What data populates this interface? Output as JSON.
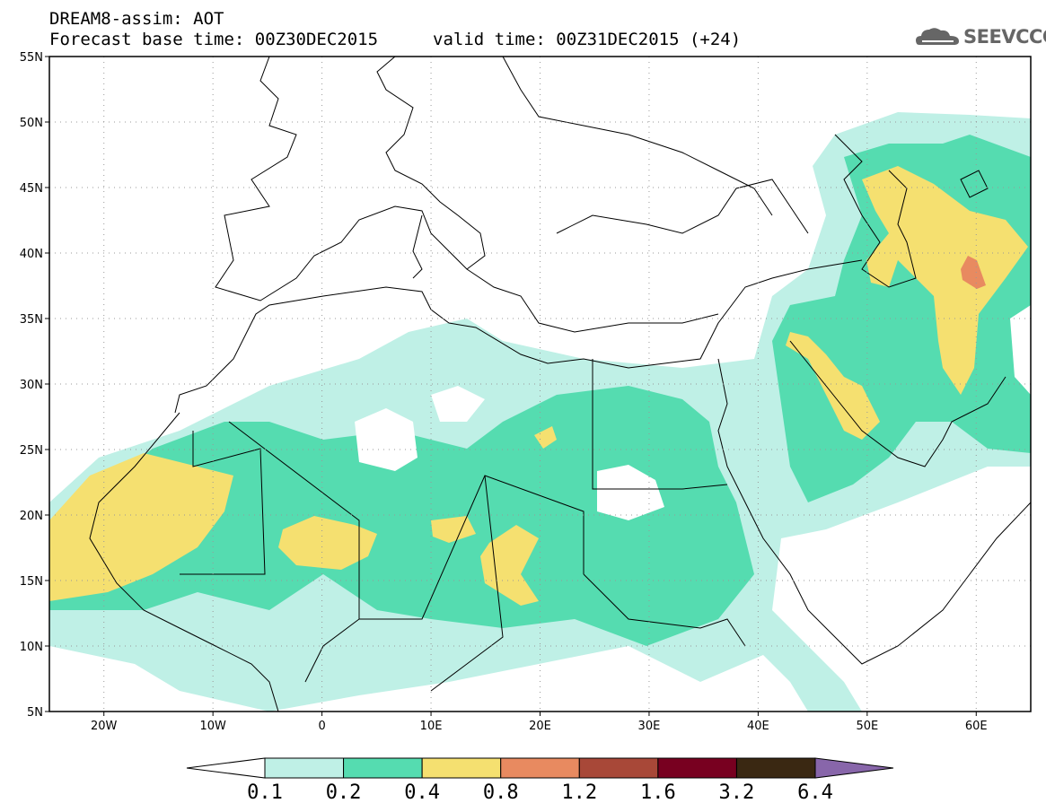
{
  "header": {
    "title_line1": "DREAM8-assim: AOT",
    "title_line2": "Forecast base time: 00Z30DEC2015",
    "title_line3": "valid time: 00Z31DEC2015 (+24)",
    "logo_text": "SEEVCCC",
    "logo_icon": "cloud-icon"
  },
  "map": {
    "lon_range": [
      -25,
      65
    ],
    "lat_range": [
      5,
      55
    ],
    "lat_ticks": [
      {
        "value": 55,
        "label": "55N"
      },
      {
        "value": 50,
        "label": "50N"
      },
      {
        "value": 45,
        "label": "45N"
      },
      {
        "value": 40,
        "label": "40N"
      },
      {
        "value": 35,
        "label": "35N"
      },
      {
        "value": 30,
        "label": "30N"
      },
      {
        "value": 25,
        "label": "25N"
      },
      {
        "value": 20,
        "label": "20N"
      },
      {
        "value": 15,
        "label": "15N"
      },
      {
        "value": 10,
        "label": "10N"
      },
      {
        "value": 5,
        "label": "5N"
      }
    ],
    "lon_ticks": [
      {
        "value": -20,
        "label": "20W"
      },
      {
        "value": -10,
        "label": "10W"
      },
      {
        "value": 0,
        "label": "0"
      },
      {
        "value": 10,
        "label": "10E"
      },
      {
        "value": 20,
        "label": "20E"
      },
      {
        "value": 30,
        "label": "30E"
      },
      {
        "value": 40,
        "label": "40E"
      },
      {
        "value": 50,
        "label": "50E"
      },
      {
        "value": 60,
        "label": "60E"
      }
    ],
    "grid": true,
    "grid_style": "dotted"
  },
  "colorbar": {
    "levels": [
      "0.1",
      "0.2",
      "0.4",
      "0.8",
      "1.2",
      "1.6",
      "3.2",
      "6.4"
    ],
    "colors": [
      "#ffffff",
      "#bff0e6",
      "#55dcb0",
      "#f5e070",
      "#e88a60",
      "#a84838",
      "#780020",
      "#3a2812",
      "#8866aa"
    ]
  },
  "colors": {
    "level1": "#bff0e6",
    "level2": "#55dcb0",
    "level3": "#f5e070",
    "level4": "#e88a60",
    "coast": "#000000"
  }
}
